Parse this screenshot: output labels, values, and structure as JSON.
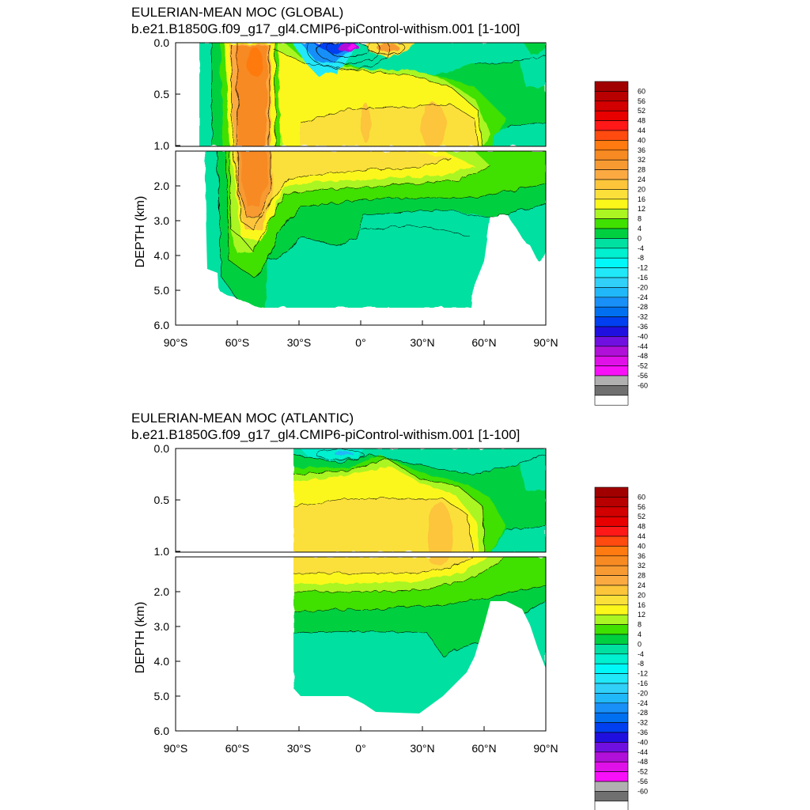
{
  "chart_data": [
    {
      "type": "contour",
      "title": "EULERIAN-MEAN MOC (GLOBAL)",
      "subtitle": "b.e21.B1850G.f09_g17_gl4.CMIP6-piControl-withism.001 [1-100]",
      "ylabel": "DEPTH (km)",
      "xlim": [
        -90,
        90
      ],
      "ylim": [
        6.0,
        0.0
      ],
      "y_axis_break_km": 1.0,
      "x_ticks": [
        {
          "value": -90,
          "label": "90°S"
        },
        {
          "value": -60,
          "label": "60°S"
        },
        {
          "value": -30,
          "label": "30°S"
        },
        {
          "value": 0,
          "label": "0°"
        },
        {
          "value": 30,
          "label": "30°N"
        },
        {
          "value": 60,
          "label": "60°N"
        },
        {
          "value": 90,
          "label": "90°N"
        }
      ],
      "y_ticks_upper": [
        {
          "value": 0.0,
          "label": "0.0"
        },
        {
          "value": 0.5,
          "label": "0.5"
        },
        {
          "value": 1.0,
          "label": "1.0"
        }
      ],
      "y_ticks_lower": [
        {
          "value": 2.0,
          "label": "2.0"
        },
        {
          "value": 3.0,
          "label": "3.0"
        },
        {
          "value": 4.0,
          "label": "4.0"
        },
        {
          "value": 5.0,
          "label": "5.0"
        },
        {
          "value": 6.0,
          "label": "6.0"
        }
      ],
      "domain_lat_range": [
        -78,
        90
      ],
      "features": [
        {
          "name": "Southern Ocean cell",
          "lat": -50,
          "depth_range": [
            0.0,
            4.2
          ],
          "max": 38
        },
        {
          "name": "Southern Ocean cell",
          "lat": -50,
          "depth_range": [
            1.1,
            3.5
          ],
          "max": 36
        },
        {
          "name": "Tropical cell (south)",
          "lat": -8,
          "depth_range": [
            0.0,
            0.2
          ],
          "min": -44
        },
        {
          "name": "Tropical cell (north)",
          "lat": 12,
          "depth_range": [
            0.0,
            0.1
          ],
          "max": 24
        },
        {
          "name": "AMOC upper",
          "lat": 40,
          "depth_range": [
            0.4,
            1.0
          ],
          "max": 20
        },
        {
          "name": "Abyssal cell",
          "lat": 10,
          "depth_range": [
            3.3,
            5.5
          ],
          "min": -4
        }
      ]
    },
    {
      "type": "contour",
      "title": "EULERIAN-MEAN MOC (ATLANTIC)",
      "subtitle": "b.e21.B1850G.f09_g17_gl4.CMIP6-piControl-withism.001 [1-100]",
      "ylabel": "DEPTH (km)",
      "xlim": [
        -90,
        90
      ],
      "ylim": [
        6.0,
        0.0
      ],
      "y_axis_break_km": 1.0,
      "x_ticks": [
        {
          "value": -90,
          "label": "90°S"
        },
        {
          "value": -60,
          "label": "60°S"
        },
        {
          "value": -30,
          "label": "30°S"
        },
        {
          "value": 0,
          "label": "0°"
        },
        {
          "value": 30,
          "label": "30°N"
        },
        {
          "value": 60,
          "label": "60°N"
        },
        {
          "value": 90,
          "label": "90°N"
        }
      ],
      "y_ticks_upper": [
        {
          "value": 0.0,
          "label": "0.0"
        },
        {
          "value": 0.5,
          "label": "0.5"
        },
        {
          "value": 1.0,
          "label": "1.0"
        }
      ],
      "y_ticks_lower": [
        {
          "value": 2.0,
          "label": "2.0"
        },
        {
          "value": 3.0,
          "label": "3.0"
        },
        {
          "value": 4.0,
          "label": "4.0"
        },
        {
          "value": 5.0,
          "label": "5.0"
        },
        {
          "value": 6.0,
          "label": "6.0"
        }
      ],
      "domain_lat_range": [
        -34,
        90
      ],
      "features": [
        {
          "name": "Surface cell",
          "lat": -17,
          "depth_range": [
            0.0,
            0.1
          ],
          "min": -8
        },
        {
          "name": "AMOC upper",
          "lat": 40,
          "depth_range": [
            0.4,
            1.0
          ],
          "max": 24
        },
        {
          "name": "Abyssal cell",
          "lat": 5,
          "depth_range": [
            3.5,
            5.5
          ],
          "min": -4
        }
      ]
    }
  ],
  "colorbar": {
    "labels": [
      "60",
      "56",
      "52",
      "48",
      "44",
      "40",
      "36",
      "32",
      "28",
      "24",
      "20",
      "16",
      "12",
      "8",
      "4",
      "0",
      "-4",
      "-8",
      "-12",
      "-16",
      "-20",
      "-24",
      "-28",
      "-32",
      "-36",
      "-40",
      "-44",
      "-48",
      "-52",
      "-56",
      "-60"
    ],
    "colors": [
      "#a10000",
      "#b80000",
      "#d20000",
      "#e80000",
      "#ff1818",
      "#ff4a10",
      "#ff7a10",
      "#f78a22",
      "#f79a32",
      "#fbaa42",
      "#fcc53a",
      "#fbe03a",
      "#fbf71a",
      "#aaf522",
      "#40e000",
      "#00d040",
      "#00e0a0",
      "#00f0d0",
      "#00f8f8",
      "#20e8f8",
      "#30d0f8",
      "#20b8f8",
      "#1890f8",
      "#0070f0",
      "#0040f0",
      "#2010e0",
      "#7010e0",
      "#b010d8",
      "#e010e8",
      "#f810f8",
      "#b0b0b0",
      "#707070",
      "#ffffff"
    ]
  }
}
